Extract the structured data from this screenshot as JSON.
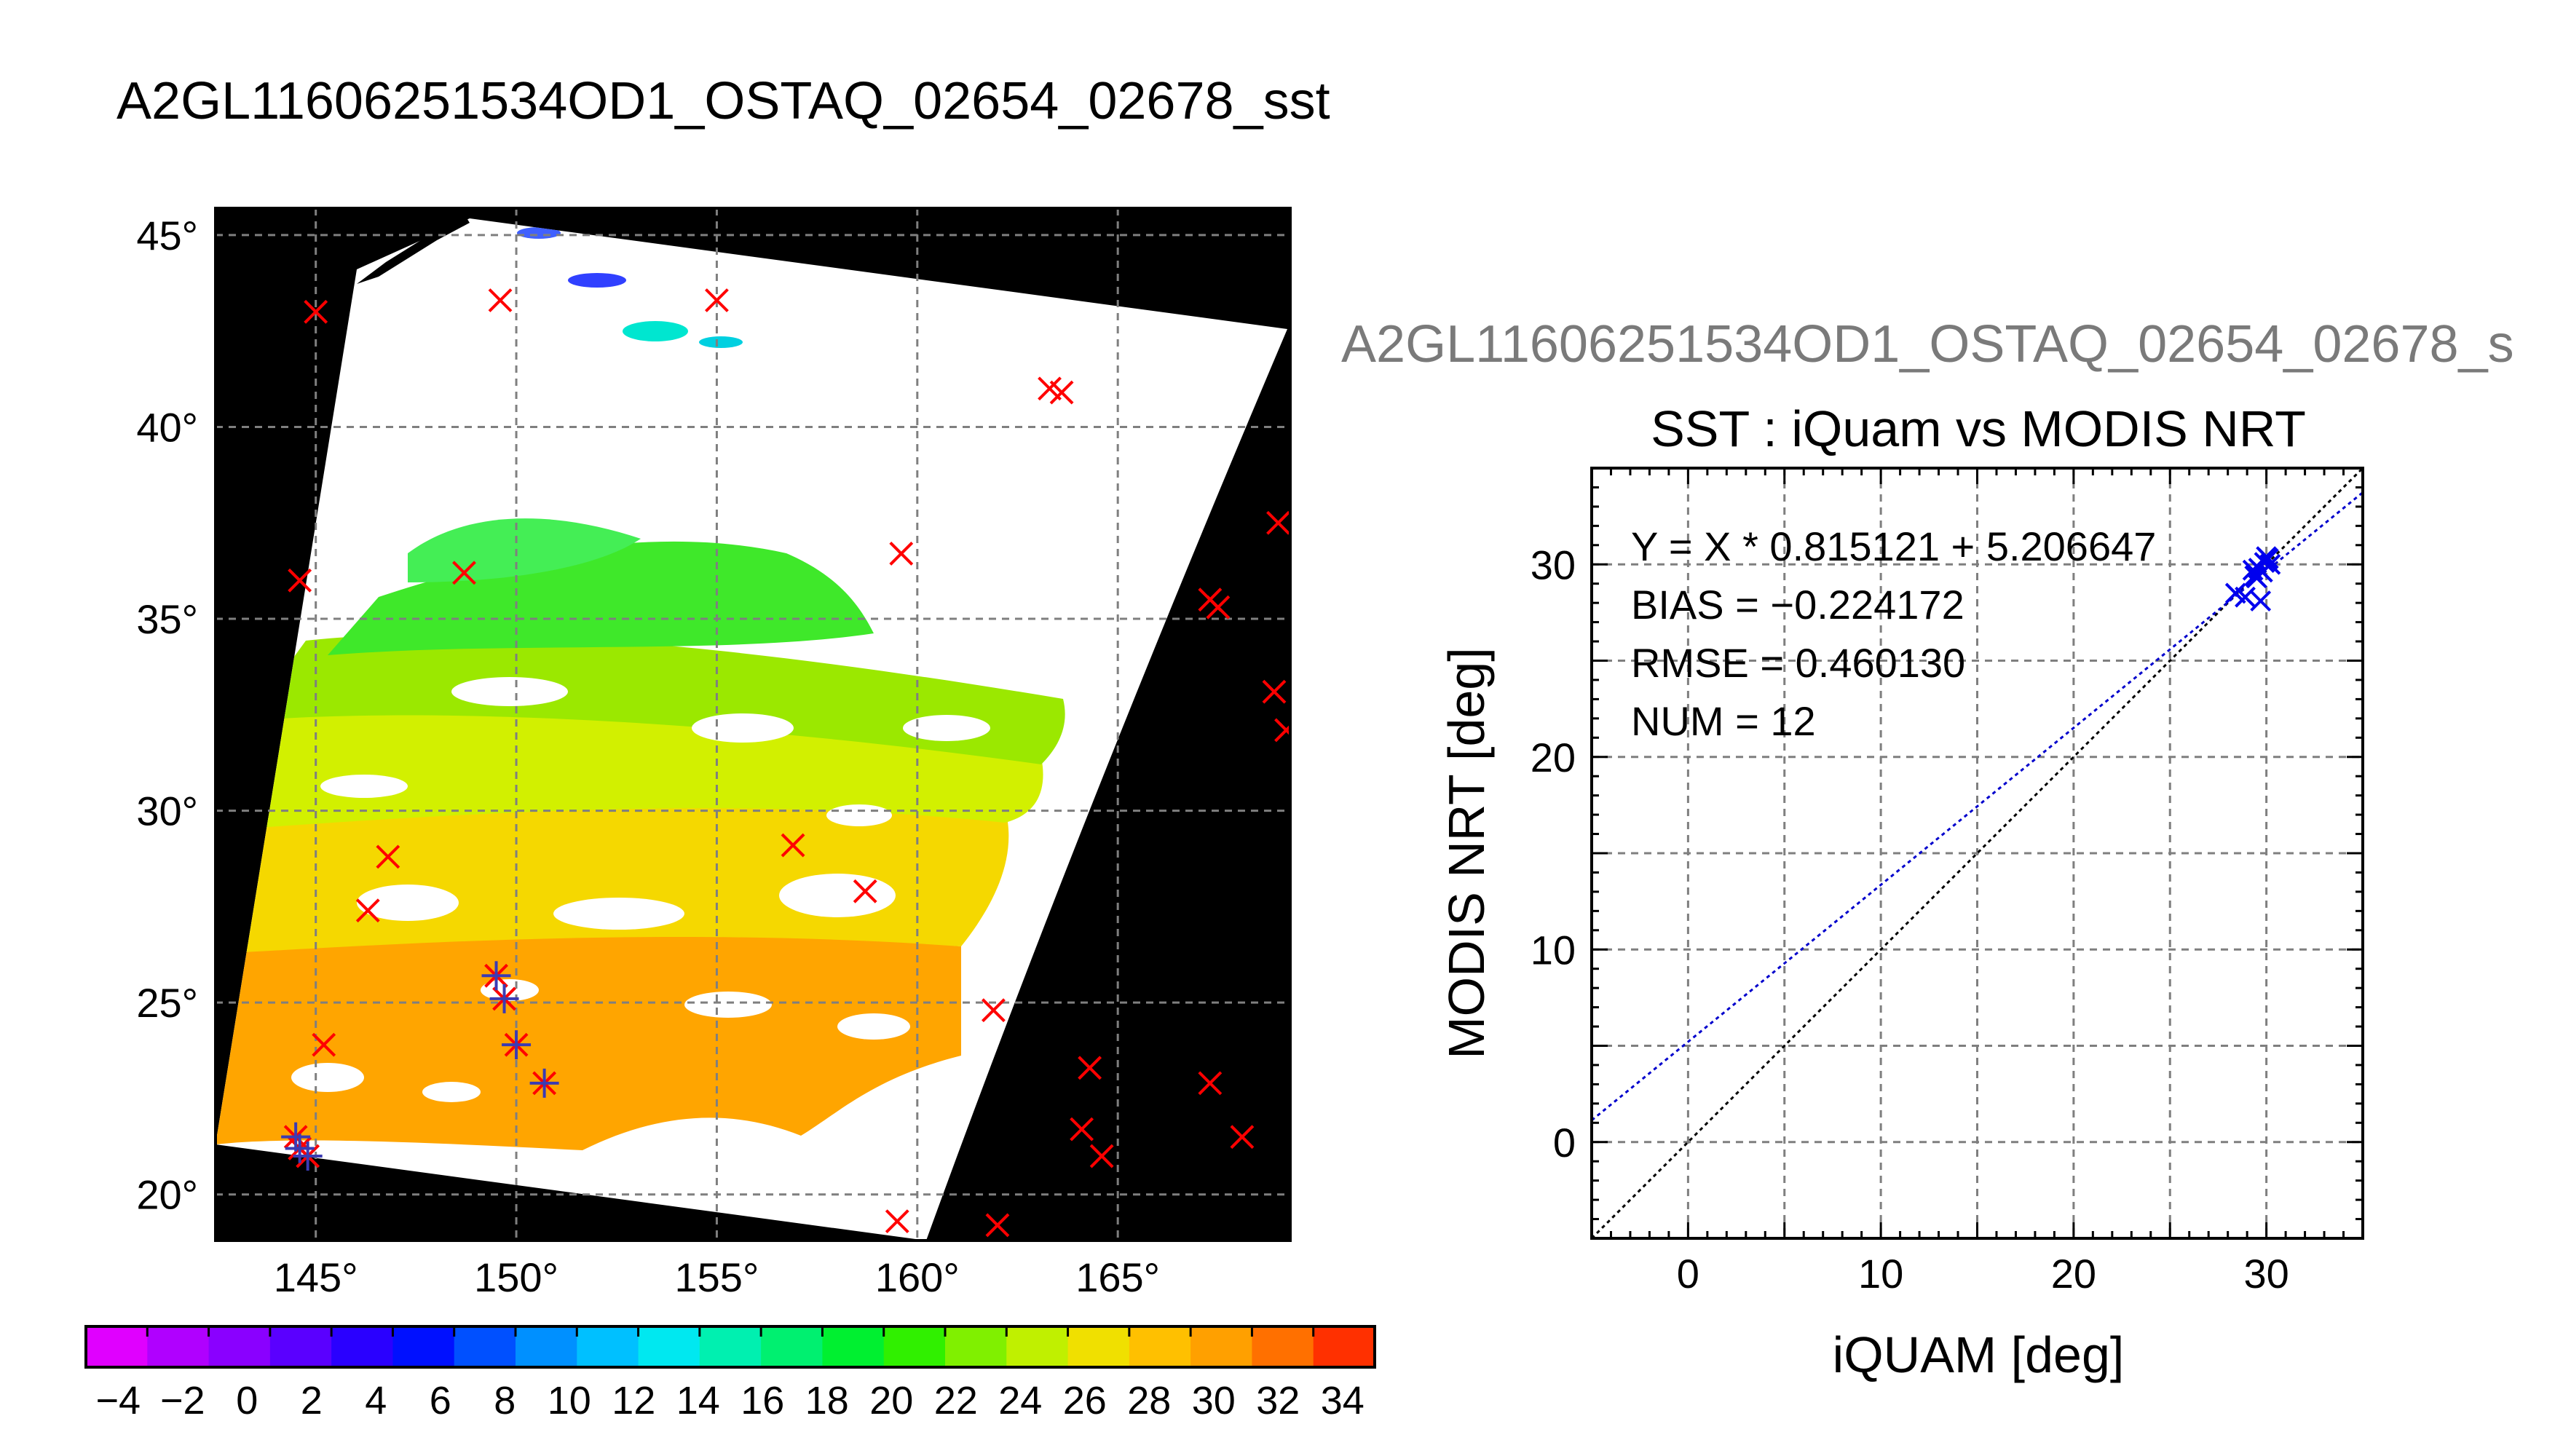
{
  "page": {
    "title": "A2GL11606251534OD1_OSTAQ_02654_02678_sst",
    "subtitle_truncated": "A2GL11606251534OD1_OSTAQ_02654_02678_s"
  },
  "colors": {
    "match_marker": "#ff0000",
    "matched_valid": "#3b3bb3",
    "fit_line": "#0000cc",
    "one_to_one_line": "#000000",
    "scatter_marker": "#0000ee",
    "grid": "#7f7f7f",
    "background_outside_swath": "#000000",
    "cloud_mask": "#ffffff"
  },
  "chart_data": [
    {
      "id": "sst_map",
      "type": "heatmap",
      "title": "",
      "x_tick_labels": [
        "145°",
        "150°",
        "155°",
        "160°",
        "165°"
      ],
      "y_tick_labels": [
        "20°",
        "25°",
        "30°",
        "35°",
        "40°",
        "45°"
      ],
      "x_ticks": [
        145,
        150,
        155,
        160,
        165
      ],
      "y_ticks": [
        20,
        25,
        30,
        35,
        40,
        45
      ],
      "xlim": [
        142.5,
        169.3
      ],
      "ylim": [
        18.8,
        45.7
      ],
      "grid": true,
      "colorbar": {
        "ticks": [
          -4,
          -2,
          0,
          2,
          4,
          6,
          8,
          10,
          12,
          14,
          16,
          18,
          20,
          22,
          24,
          26,
          28,
          30,
          32,
          34
        ],
        "range": [
          -5,
          35
        ],
        "colors": [
          "#e000ff",
          "#b000ff",
          "#8a00ff",
          "#5a00ff",
          "#2a00ff",
          "#0010ff",
          "#0050ff",
          "#0090ff",
          "#00c0ff",
          "#00e8f0",
          "#00f0b0",
          "#00f070",
          "#00f030",
          "#30f000",
          "#80f000",
          "#c0f000",
          "#f0e000",
          "#ffc000",
          "#ffa000",
          "#ff7000",
          "#ff3000"
        ]
      },
      "iquam_points": [
        {
          "lon": 145.0,
          "lat": 43.0
        },
        {
          "lon": 149.6,
          "lat": 43.3
        },
        {
          "lon": 155.0,
          "lat": 43.3
        },
        {
          "lon": 163.3,
          "lat": 41.0
        },
        {
          "lon": 163.6,
          "lat": 40.9
        },
        {
          "lon": 144.6,
          "lat": 36.0
        },
        {
          "lon": 148.7,
          "lat": 36.2
        },
        {
          "lon": 159.6,
          "lat": 36.7
        },
        {
          "lon": 167.3,
          "lat": 35.5
        },
        {
          "lon": 167.5,
          "lat": 35.3
        },
        {
          "lon": 169.0,
          "lat": 37.5
        },
        {
          "lon": 168.9,
          "lat": 33.1
        },
        {
          "lon": 169.2,
          "lat": 32.1
        },
        {
          "lon": 146.8,
          "lat": 28.8
        },
        {
          "lon": 146.3,
          "lat": 27.4
        },
        {
          "lon": 156.9,
          "lat": 29.1
        },
        {
          "lon": 158.7,
          "lat": 27.9
        },
        {
          "lon": 161.9,
          "lat": 24.8
        },
        {
          "lon": 145.2,
          "lat": 23.9
        },
        {
          "lon": 149.5,
          "lat": 25.7
        },
        {
          "lon": 149.7,
          "lat": 25.1
        },
        {
          "lon": 150.0,
          "lat": 23.9
        },
        {
          "lon": 150.7,
          "lat": 22.9
        },
        {
          "lon": 144.5,
          "lat": 21.5
        },
        {
          "lon": 144.6,
          "lat": 21.2
        },
        {
          "lon": 144.8,
          "lat": 21.0
        },
        {
          "lon": 164.3,
          "lat": 23.3
        },
        {
          "lon": 164.1,
          "lat": 21.7
        },
        {
          "lon": 164.6,
          "lat": 21.0
        },
        {
          "lon": 167.3,
          "lat": 22.9
        },
        {
          "lon": 168.1,
          "lat": 21.5
        },
        {
          "lon": 159.5,
          "lat": 19.3
        },
        {
          "lon": 162.0,
          "lat": 19.2
        }
      ],
      "matched_points": [
        {
          "lon": 149.5,
          "lat": 25.7
        },
        {
          "lon": 149.7,
          "lat": 25.1
        },
        {
          "lon": 150.0,
          "lat": 23.9
        },
        {
          "lon": 150.7,
          "lat": 22.9
        },
        {
          "lon": 144.5,
          "lat": 21.5
        },
        {
          "lon": 144.6,
          "lat": 21.2
        },
        {
          "lon": 144.8,
          "lat": 21.0
        }
      ]
    },
    {
      "id": "sst_scatter",
      "type": "scatter",
      "title": "SST : iQuam vs MODIS NRT",
      "xlabel": "iQUAM [deg]",
      "ylabel": "MODIS NRT [deg]",
      "xlim": [
        -5,
        35
      ],
      "ylim": [
        -5,
        35
      ],
      "x_ticks": [
        0,
        10,
        20,
        30
      ],
      "y_ticks": [
        0,
        10,
        20,
        30
      ],
      "grid": true,
      "stats": {
        "fit": "Y = X * 0.815121 + 5.206647",
        "bias": "BIAS = −0.224172",
        "rmse": "RMSE = 0.460130",
        "num": "NUM = 12"
      },
      "fit_line": {
        "slope": 0.815121,
        "intercept": 5.206647
      },
      "one_to_one": true,
      "points": [
        {
          "x": 28.4,
          "y": 28.5
        },
        {
          "x": 28.9,
          "y": 28.3
        },
        {
          "x": 29.3,
          "y": 29.7
        },
        {
          "x": 29.5,
          "y": 29.3
        },
        {
          "x": 29.6,
          "y": 29.8
        },
        {
          "x": 29.7,
          "y": 28.1
        },
        {
          "x": 29.8,
          "y": 29.6
        },
        {
          "x": 29.9,
          "y": 30.1
        },
        {
          "x": 30.0,
          "y": 30.4
        },
        {
          "x": 30.1,
          "y": 30.3
        },
        {
          "x": 30.2,
          "y": 30.0
        },
        {
          "x": 29.4,
          "y": 29.4
        }
      ]
    }
  ]
}
